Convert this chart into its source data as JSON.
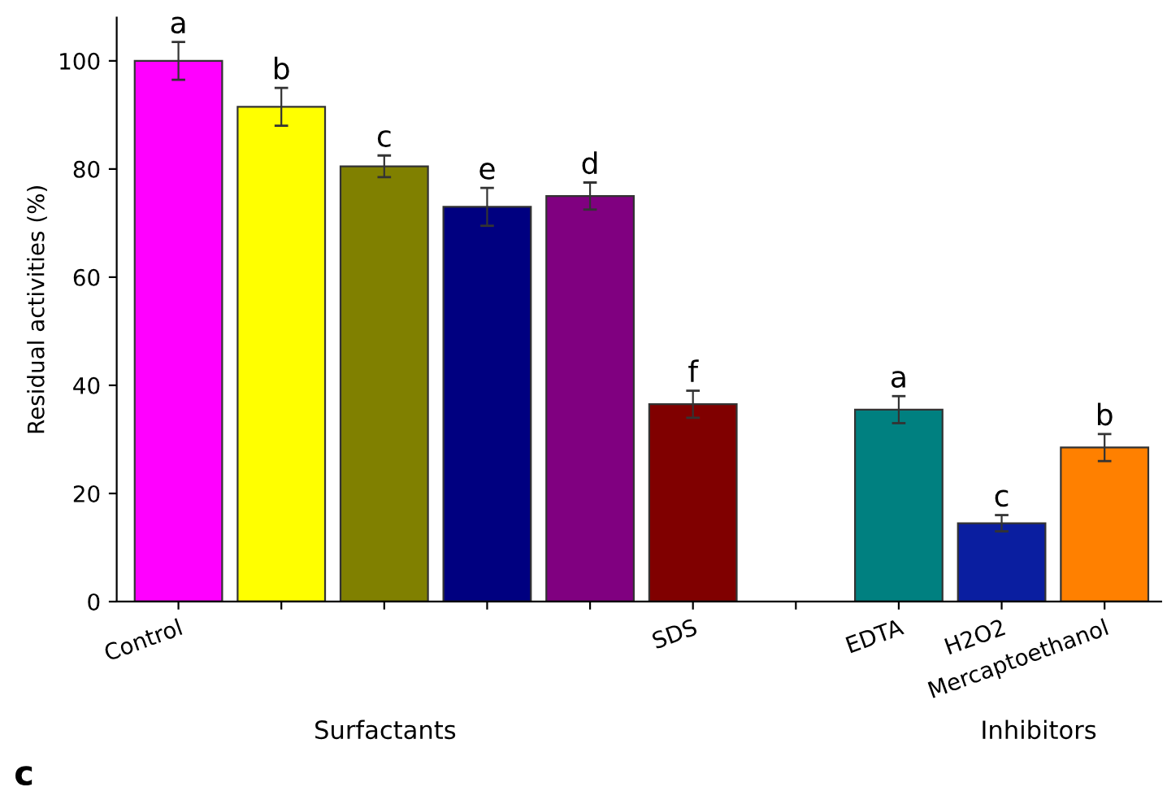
{
  "chart_data": {
    "type": "bar",
    "ylabel": "Residual activities (%)",
    "categories": [
      "Control",
      null,
      null,
      null,
      null,
      "SDS",
      null,
      "EDTA",
      "H2O2",
      "Mercaptoethanol"
    ],
    "values": [
      100,
      91.5,
      80.5,
      73,
      75,
      36.5,
      null,
      35.5,
      14.5,
      28.5
    ],
    "errors": [
      3.5,
      3.5,
      2,
      3.5,
      2.5,
      2.5,
      null,
      2.5,
      1.5,
      2.5
    ],
    "colors": [
      "#ff00ff",
      "#ffff00",
      "#808000",
      "#000080",
      "#800080",
      "#800000",
      null,
      "#008080",
      "#0a1ea0",
      "#ff8000"
    ],
    "value_labels": [
      "a",
      "b",
      "c",
      "e",
      "d",
      "f",
      null,
      "a",
      "c",
      "b"
    ],
    "annotations": [
      "Surfactants",
      "Inhibitors",
      "c"
    ],
    "ylim": [
      0,
      108
    ],
    "yticks": [
      0,
      20,
      40,
      60,
      80,
      100
    ],
    "grid": false,
    "legend": false
  }
}
